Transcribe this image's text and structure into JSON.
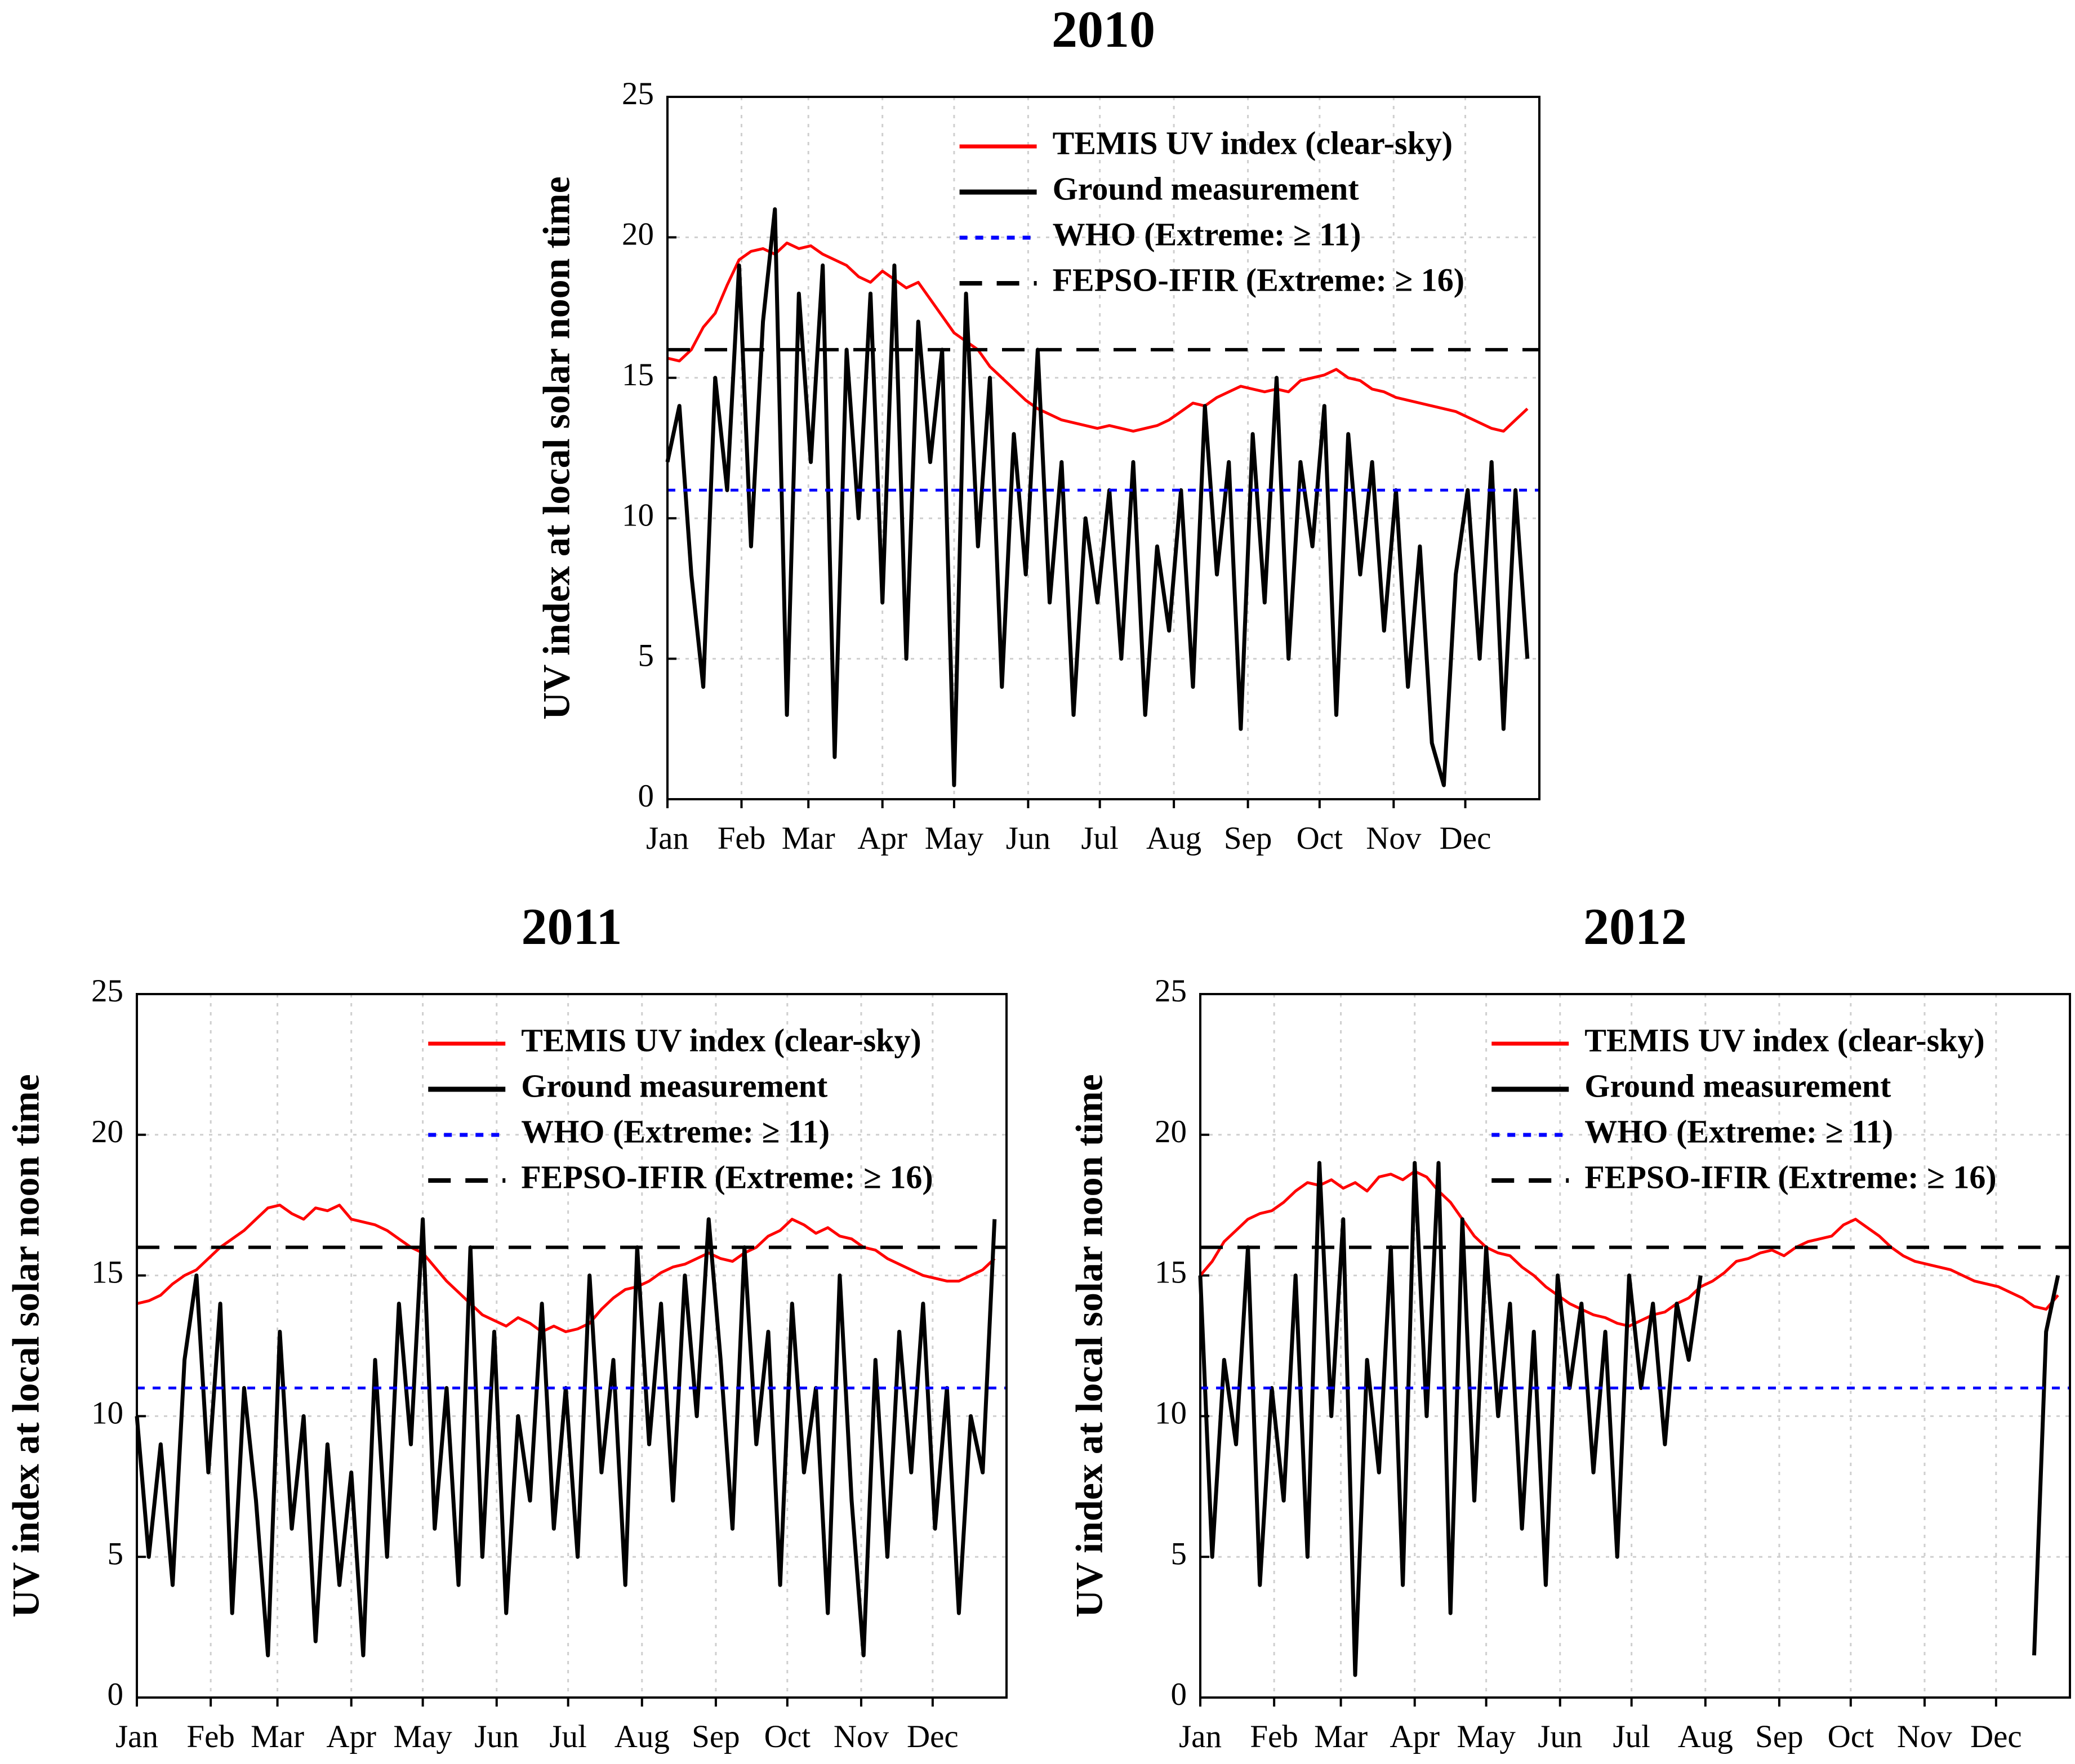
{
  "chart_data": [
    {
      "type": "line",
      "title": "2010",
      "ylabel": "UV index at local solar noon time",
      "x": [
        1,
        6,
        11,
        16,
        21,
        26,
        31,
        36,
        41,
        46,
        51,
        56,
        61,
        66,
        71,
        76,
        81,
        86,
        91,
        96,
        101,
        106,
        111,
        116,
        121,
        126,
        131,
        136,
        141,
        146,
        151,
        156,
        161,
        166,
        171,
        176,
        181,
        186,
        191,
        196,
        201,
        206,
        211,
        216,
        221,
        226,
        231,
        236,
        241,
        246,
        251,
        256,
        261,
        266,
        271,
        276,
        281,
        286,
        291,
        296,
        301,
        306,
        311,
        316,
        321,
        326,
        331,
        336,
        341,
        346,
        351,
        356,
        361
      ],
      "xlim": [
        1,
        366
      ],
      "xticks": [
        {
          "value": 1,
          "label": "Jan"
        },
        {
          "value": 32,
          "label": "Feb"
        },
        {
          "value": 60,
          "label": "Mar"
        },
        {
          "value": 91,
          "label": "Apr"
        },
        {
          "value": 121,
          "label": "May"
        },
        {
          "value": 152,
          "label": "Jun"
        },
        {
          "value": 182,
          "label": "Jul"
        },
        {
          "value": 213,
          "label": "Aug"
        },
        {
          "value": 244,
          "label": "Sep"
        },
        {
          "value": 274,
          "label": "Oct"
        },
        {
          "value": 305,
          "label": "Nov"
        },
        {
          "value": 335,
          "label": "Dec"
        }
      ],
      "ylim": [
        0,
        25
      ],
      "yticks": [
        0,
        5,
        10,
        15,
        20,
        25
      ],
      "grid": true,
      "legend": "upper right",
      "series": [
        {
          "name": "TEMIS UV index (clear-sky)",
          "color": "#ff0000",
          "style": "solid",
          "values": [
            15.7,
            15.6,
            16.0,
            16.8,
            17.3,
            18.3,
            19.2,
            19.5,
            19.6,
            19.4,
            19.8,
            19.6,
            19.7,
            19.4,
            19.2,
            19.0,
            18.6,
            18.4,
            18.8,
            18.5,
            18.2,
            18.4,
            17.8,
            17.2,
            16.6,
            16.3,
            16.0,
            15.4,
            15.0,
            14.6,
            14.2,
            13.9,
            13.7,
            13.5,
            13.4,
            13.3,
            13.2,
            13.3,
            13.2,
            13.1,
            13.2,
            13.3,
            13.5,
            13.8,
            14.1,
            14.0,
            14.3,
            14.5,
            14.7,
            14.6,
            14.5,
            14.6,
            14.5,
            14.9,
            15.0,
            15.1,
            15.3,
            15.0,
            14.9,
            14.6,
            14.5,
            14.3,
            14.2,
            14.1,
            14.0,
            13.9,
            13.8,
            13.6,
            13.4,
            13.2,
            13.1,
            13.5,
            13.9
          ]
        },
        {
          "name": "Ground measurement",
          "color": "#000000",
          "style": "thick",
          "values": [
            12,
            14,
            8,
            4,
            15,
            11,
            19,
            9,
            17,
            21,
            3,
            18,
            12,
            19,
            1.5,
            16,
            10,
            18,
            7,
            19,
            5,
            17,
            12,
            16,
            0.5,
            18,
            9,
            15,
            4,
            13,
            8,
            16,
            7,
            12,
            3,
            10,
            7,
            11,
            5,
            12,
            3,
            9,
            6,
            11,
            4,
            14,
            8,
            12,
            2.5,
            13,
            7,
            15,
            5,
            12,
            9,
            14,
            3,
            13,
            8,
            12,
            6,
            11,
            4,
            9,
            2,
            0.5,
            8,
            11,
            5,
            12,
            2.5,
            11,
            5
          ]
        },
        {
          "name": "WHO (Extreme: ≥ 11)",
          "color": "#0000ff",
          "style": "dotted",
          "x": [
            1,
            366
          ],
          "values": [
            11,
            11
          ]
        },
        {
          "name": "FEPSO-IFIR (Extreme: ≥ 16)",
          "color": "#000000",
          "style": "dashed",
          "x": [
            1,
            366
          ],
          "values": [
            16,
            16
          ]
        }
      ]
    },
    {
      "type": "line",
      "title": "2011",
      "ylabel": "UV index at local solar noon time",
      "x": [
        1,
        6,
        11,
        16,
        21,
        26,
        31,
        36,
        41,
        46,
        51,
        56,
        61,
        66,
        71,
        76,
        81,
        86,
        91,
        96,
        101,
        106,
        111,
        116,
        121,
        126,
        131,
        136,
        141,
        146,
        151,
        156,
        161,
        166,
        171,
        176,
        181,
        186,
        191,
        196,
        201,
        206,
        211,
        216,
        221,
        226,
        231,
        236,
        241,
        246,
        251,
        256,
        261,
        266,
        271,
        276,
        281,
        286,
        291,
        296,
        301,
        306,
        311,
        316,
        321,
        326,
        331,
        336,
        341,
        346,
        351,
        356,
        361
      ],
      "xlim": [
        1,
        366
      ],
      "xticks": [
        {
          "value": 1,
          "label": "Jan"
        },
        {
          "value": 32,
          "label": "Feb"
        },
        {
          "value": 60,
          "label": "Mar"
        },
        {
          "value": 91,
          "label": "Apr"
        },
        {
          "value": 121,
          "label": "May"
        },
        {
          "value": 152,
          "label": "Jun"
        },
        {
          "value": 182,
          "label": "Jul"
        },
        {
          "value": 213,
          "label": "Aug"
        },
        {
          "value": 244,
          "label": "Sep"
        },
        {
          "value": 274,
          "label": "Oct"
        },
        {
          "value": 305,
          "label": "Nov"
        },
        {
          "value": 335,
          "label": "Dec"
        }
      ],
      "ylim": [
        0,
        25
      ],
      "yticks": [
        0,
        5,
        10,
        15,
        20,
        25
      ],
      "grid": true,
      "legend": "upper right",
      "series": [
        {
          "name": "TEMIS UV index (clear-sky)",
          "color": "#ff0000",
          "style": "solid",
          "values": [
            14.0,
            14.1,
            14.3,
            14.7,
            15.0,
            15.2,
            15.6,
            16.0,
            16.3,
            16.6,
            17.0,
            17.4,
            17.5,
            17.2,
            17.0,
            17.4,
            17.3,
            17.5,
            17.0,
            16.9,
            16.8,
            16.6,
            16.3,
            16.0,
            15.8,
            15.3,
            14.8,
            14.4,
            14.0,
            13.6,
            13.4,
            13.2,
            13.5,
            13.3,
            13.0,
            13.2,
            13.0,
            13.1,
            13.3,
            13.8,
            14.2,
            14.5,
            14.6,
            14.8,
            15.1,
            15.3,
            15.4,
            15.6,
            15.8,
            15.6,
            15.5,
            15.8,
            16.0,
            16.4,
            16.6,
            17.0,
            16.8,
            16.5,
            16.7,
            16.4,
            16.3,
            16.0,
            15.9,
            15.6,
            15.4,
            15.2,
            15.0,
            14.9,
            14.8,
            14.8,
            15.0,
            15.2,
            15.6
          ]
        },
        {
          "name": "Ground measurement",
          "color": "#000000",
          "style": "thick",
          "values": [
            10,
            5,
            9,
            4,
            12,
            15,
            8,
            14,
            3,
            11,
            7,
            1.5,
            13,
            6,
            10,
            2,
            9,
            4,
            8,
            1.5,
            12,
            5,
            14,
            9,
            17,
            6,
            11,
            4,
            16,
            5,
            13,
            3,
            10,
            7,
            14,
            6,
            11,
            5,
            15,
            8,
            12,
            4,
            16,
            9,
            14,
            7,
            15,
            10,
            17,
            12,
            6,
            16,
            9,
            13,
            4,
            14,
            8,
            11,
            3,
            15,
            7,
            1.5,
            12,
            5,
            13,
            8,
            14,
            6,
            11,
            3,
            10,
            8,
            17
          ]
        },
        {
          "name": "WHO (Extreme: ≥ 11)",
          "color": "#0000ff",
          "style": "dotted",
          "x": [
            1,
            366
          ],
          "values": [
            11,
            11
          ]
        },
        {
          "name": "FEPSO-IFIR (Extreme: ≥ 16)",
          "color": "#000000",
          "style": "dashed",
          "x": [
            1,
            366
          ],
          "values": [
            16,
            16
          ]
        }
      ]
    },
    {
      "type": "line",
      "title": "2012",
      "ylabel": "UV index at local solar noon time",
      "x": [
        1,
        6,
        11,
        16,
        21,
        26,
        31,
        36,
        41,
        46,
        51,
        56,
        61,
        66,
        71,
        76,
        81,
        86,
        91,
        96,
        101,
        106,
        111,
        116,
        121,
        126,
        131,
        136,
        141,
        146,
        151,
        156,
        161,
        166,
        171,
        176,
        181,
        186,
        191,
        196,
        201,
        206,
        211,
        216,
        221,
        226,
        231,
        236,
        241,
        246,
        251,
        256,
        261,
        266,
        271,
        276,
        281,
        286,
        291,
        296,
        301,
        306,
        311,
        316,
        321,
        326,
        331,
        336,
        341,
        346,
        351,
        356,
        361
      ],
      "xlim": [
        1,
        366
      ],
      "xticks": [
        {
          "value": 1,
          "label": "Jan"
        },
        {
          "value": 32,
          "label": "Feb"
        },
        {
          "value": 60,
          "label": "Mar"
        },
        {
          "value": 91,
          "label": "Apr"
        },
        {
          "value": 121,
          "label": "May"
        },
        {
          "value": 152,
          "label": "Jun"
        },
        {
          "value": 182,
          "label": "Jul"
        },
        {
          "value": 213,
          "label": "Aug"
        },
        {
          "value": 244,
          "label": "Sep"
        },
        {
          "value": 274,
          "label": "Oct"
        },
        {
          "value": 305,
          "label": "Nov"
        },
        {
          "value": 335,
          "label": "Dec"
        }
      ],
      "ylim": [
        0,
        25
      ],
      "yticks": [
        0,
        5,
        10,
        15,
        20,
        25
      ],
      "grid": true,
      "legend": "upper right",
      "series": [
        {
          "name": "TEMIS UV index (clear-sky)",
          "color": "#ff0000",
          "style": "solid",
          "values": [
            15.0,
            15.5,
            16.2,
            16.6,
            17.0,
            17.2,
            17.3,
            17.6,
            18.0,
            18.3,
            18.2,
            18.4,
            18.1,
            18.3,
            18.0,
            18.5,
            18.6,
            18.4,
            18.7,
            18.5,
            18.0,
            17.6,
            17.0,
            16.4,
            16.0,
            15.8,
            15.7,
            15.3,
            15.0,
            14.6,
            14.3,
            14.0,
            13.8,
            13.6,
            13.5,
            13.3,
            13.2,
            13.4,
            13.6,
            13.7,
            14.0,
            14.2,
            14.6,
            14.8,
            15.1,
            15.5,
            15.6,
            15.8,
            15.9,
            15.7,
            16.0,
            16.2,
            16.3,
            16.4,
            16.8,
            17.0,
            16.7,
            16.4,
            16.0,
            15.7,
            15.5,
            15.4,
            15.3,
            15.2,
            15.0,
            14.8,
            14.7,
            14.6,
            14.4,
            14.2,
            13.9,
            13.8,
            14.3
          ]
        },
        {
          "name": "Ground measurement",
          "color": "#000000",
          "style": "thick",
          "values": [
            15,
            5,
            12,
            9,
            16,
            4,
            11,
            7,
            15,
            5,
            19,
            10,
            17,
            0.8,
            12,
            8,
            16,
            4,
            19,
            10,
            19,
            3,
            17,
            7,
            16,
            10,
            14,
            6,
            13,
            4,
            15,
            11,
            14,
            8,
            13,
            5,
            15,
            11,
            14,
            9,
            14,
            12,
            15,
            null,
            null,
            null,
            null,
            null,
            null,
            null,
            null,
            null,
            null,
            null,
            null,
            null,
            null,
            null,
            null,
            null,
            null,
            null,
            null,
            null,
            null,
            null,
            null,
            null,
            null,
            null,
            1.5,
            13,
            15
          ]
        },
        {
          "name": "WHO (Extreme: ≥ 11)",
          "color": "#0000ff",
          "style": "dotted",
          "x": [
            1,
            366
          ],
          "values": [
            11,
            11
          ]
        },
        {
          "name": "FEPSO-IFIR (Extreme: ≥ 16)",
          "color": "#000000",
          "style": "dashed",
          "x": [
            1,
            366
          ],
          "values": [
            16,
            16
          ]
        }
      ]
    }
  ]
}
